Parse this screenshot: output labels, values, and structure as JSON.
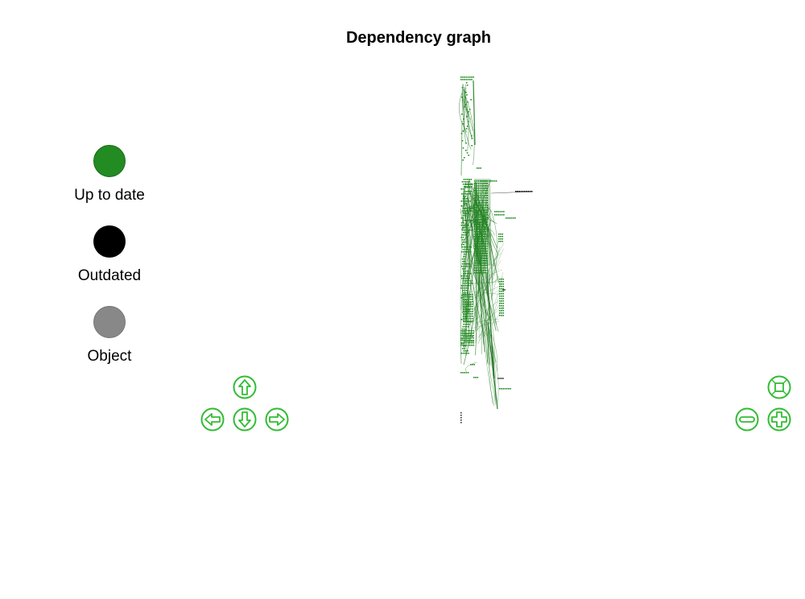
{
  "title": "Dependency graph",
  "legend": [
    {
      "label": "Up to date",
      "color": "#228b22"
    },
    {
      "label": "Outdated",
      "color": "#000000"
    },
    {
      "label": "Object",
      "color": "#888888"
    }
  ],
  "colors": {
    "accent": "#33bb33",
    "edge": "#1e7a1e",
    "node_up_to_date": "#228b22",
    "node_outdated": "#000000"
  },
  "controls": {
    "pan": [
      "up",
      "down",
      "left",
      "right"
    ],
    "zoom": [
      "zoom-in",
      "zoom-out",
      "fit"
    ],
    "icons": [
      "arrow-up-icon",
      "arrow-down-icon",
      "arrow-left-icon",
      "arrow-right-icon",
      "zoom-in-icon",
      "zoom-out-icon",
      "fit-screen-icon"
    ]
  }
}
